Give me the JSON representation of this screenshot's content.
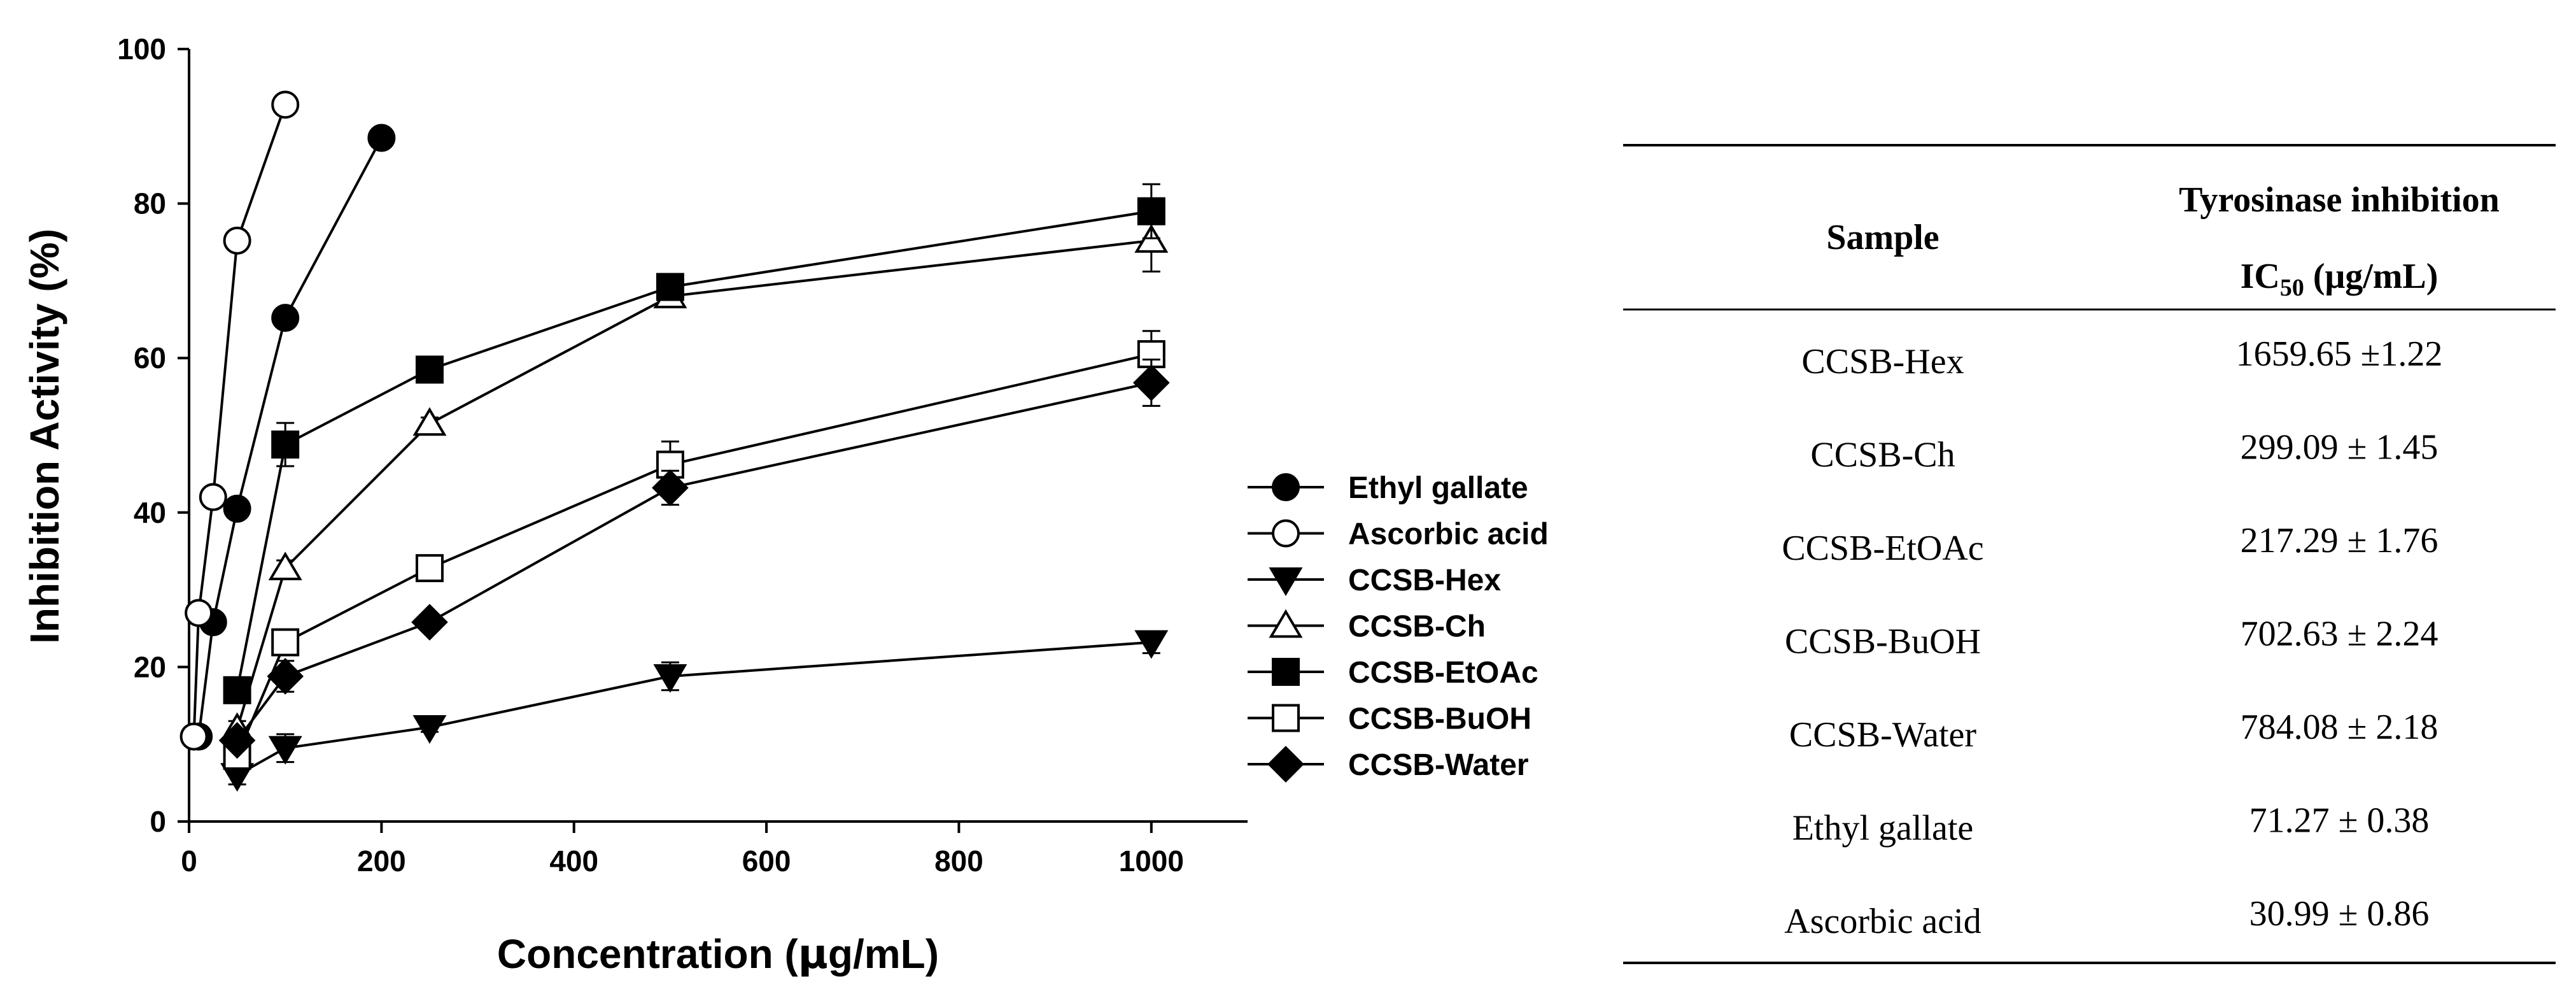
{
  "chart_data": {
    "type": "line",
    "xlabel_prefix": "Concentration (",
    "xlabel_mu": "μ",
    "xlabel_suffix": "g/mL)",
    "ylabel": "Inhibition Activity (%)",
    "xlim": [
      0,
      1100
    ],
    "ylim": [
      0,
      100
    ],
    "xticks": [
      0,
      200,
      400,
      600,
      800,
      1000
    ],
    "yticks": [
      0,
      20,
      40,
      60,
      80,
      100
    ],
    "legend_position": "right",
    "series": [
      {
        "name": "Ethyl gallate",
        "marker": "circle-filled",
        "x": [
          10,
          25,
          50,
          100,
          200
        ],
        "y": [
          11,
          25.8,
          40.5,
          65.2,
          88.5
        ],
        "err": [
          0.8,
          0.8,
          0.8,
          0.8,
          0.8
        ]
      },
      {
        "name": "Ascorbic acid",
        "marker": "circle-open",
        "x": [
          5,
          10,
          25,
          50,
          100
        ],
        "y": [
          11,
          27,
          42,
          75.2,
          92.8
        ],
        "err": [
          0.8,
          0.8,
          0.8,
          0.8,
          1.0
        ]
      },
      {
        "name": "CCSB-Hex",
        "marker": "triangle-down-filled",
        "x": [
          50,
          100,
          250,
          500,
          1000
        ],
        "y": [
          6,
          9.5,
          12.2,
          18.8,
          23.2
        ],
        "err": [
          1.2,
          1.8,
          0.6,
          1.8,
          1.4
        ]
      },
      {
        "name": "CCSB-Ch",
        "marker": "triangle-up-open",
        "x": [
          50,
          100,
          250,
          500,
          1000
        ],
        "y": [
          12,
          32.8,
          51.5,
          68,
          75.2
        ],
        "err": [
          1.0,
          1.0,
          0.8,
          1.0,
          4.0
        ]
      },
      {
        "name": "CCSB-EtOAc",
        "marker": "square-filled",
        "x": [
          50,
          100,
          250,
          500,
          1000
        ],
        "y": [
          17,
          48.8,
          58.5,
          69.2,
          79
        ],
        "err": [
          1.0,
          2.8,
          1.0,
          1.0,
          3.5
        ]
      },
      {
        "name": "CCSB-BuOH",
        "marker": "square-open",
        "x": [
          50,
          100,
          250,
          500,
          1000
        ],
        "y": [
          8.5,
          23.2,
          32.8,
          46.2,
          60.5
        ],
        "err": [
          1.0,
          1.0,
          0.8,
          3.0,
          3.0
        ]
      },
      {
        "name": "CCSB-Water",
        "marker": "diamond-filled",
        "x": [
          50,
          100,
          250,
          500,
          1000
        ],
        "y": [
          10.5,
          18.8,
          25.8,
          43.2,
          56.8
        ],
        "err": [
          1.0,
          2.0,
          0.8,
          2.2,
          3.0
        ]
      }
    ]
  },
  "table": {
    "col1_header": "Sample",
    "col2_header_line1": "Tyrosinase inhibition",
    "col2_header_ic": "IC",
    "col2_header_sub": "50",
    "col2_header_unit": " (μg/mL)",
    "rows": [
      {
        "sample": "CCSB-Hex",
        "value": "1659.65 ±1.22"
      },
      {
        "sample": "CCSB-Ch",
        "value": "299.09 ± 1.45"
      },
      {
        "sample": "CCSB-EtOAc",
        "value": "217.29 ± 1.76"
      },
      {
        "sample": "CCSB-BuOH",
        "value": "702.63 ± 2.24"
      },
      {
        "sample": "CCSB-Water",
        "value": "784.08 ± 2.18"
      },
      {
        "sample": "Ethyl gallate",
        "value": "71.27 ± 0.38"
      },
      {
        "sample": "Ascorbic acid",
        "value": "30.99 ± 0.86"
      }
    ]
  }
}
